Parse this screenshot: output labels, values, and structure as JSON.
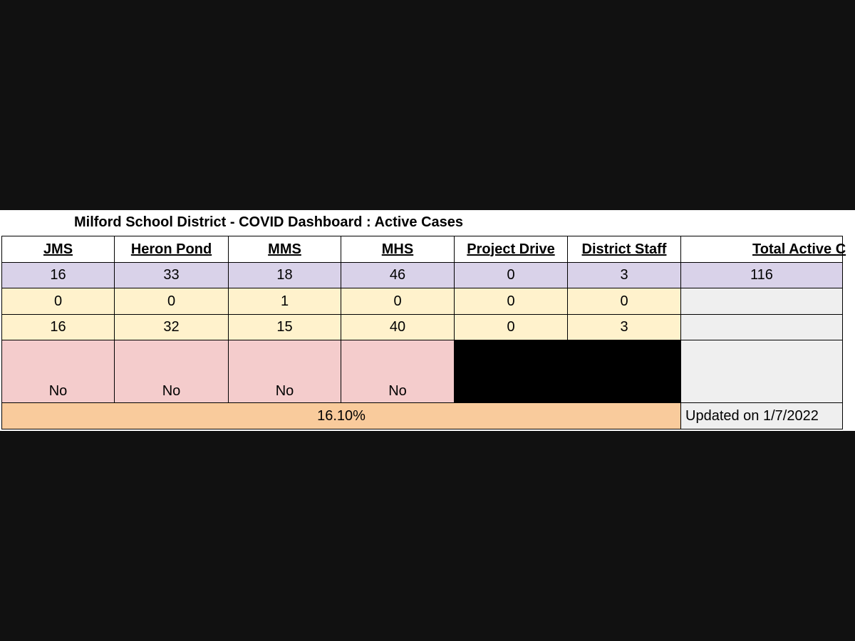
{
  "title": "Milford School District - COVID Dashboard : Active Cases",
  "table": {
    "headers": [
      "JMS",
      "Heron Pond",
      "MMS",
      "MHS",
      "Project Drive",
      "District Staff",
      "Total Active C"
    ],
    "rows": [
      [
        "16",
        "33",
        "18",
        "46",
        "0",
        "3",
        "116"
      ],
      [
        "0",
        "0",
        "1",
        "0",
        "0",
        "0"
      ],
      [
        "16",
        "32",
        "15",
        "40",
        "0",
        "3"
      ],
      [
        "No",
        "No",
        "No",
        "No"
      ]
    ],
    "footer": {
      "rate": "16.10%",
      "updated": "Updated on 1/7/2022"
    }
  }
}
